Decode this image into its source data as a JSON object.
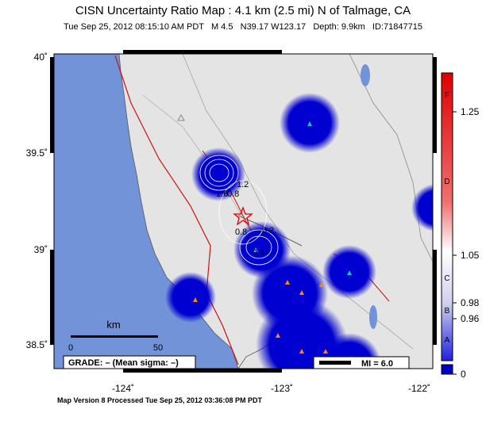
{
  "header": {
    "title": "CISN Uncertainty Ratio Map : 4.1 km (2.5 mi) N of Talmage, CA",
    "subtitle": "Tue Sep 25, 2012 08:15:10 AM PDT   M 4.5   N39.17 W123.17   Depth: 9.9km   ID:71847715"
  },
  "map": {
    "lat_labels": [
      "40˚",
      "39.5˚",
      "39˚",
      "38.5˚"
    ],
    "lon_labels": [
      "-124˚",
      "-123˚",
      "-122˚"
    ],
    "contour_labels": [
      "1.6",
      "0.8",
      "1.2",
      "0.8",
      "0.2",
      "0.4"
    ]
  },
  "scale_bar": {
    "unit": "km",
    "start": "0",
    "end": "50"
  },
  "grade": "GRADE: – (Mean sigma: –)",
  "mi_legend": "MI = 6.0",
  "colorbar": {
    "grades": [
      "F",
      "D",
      "C",
      "B",
      "A"
    ],
    "ticks": [
      "1.25",
      "1.05",
      "0.98",
      "0.96",
      "0"
    ]
  },
  "footer": "Map Version 8 Processed Tue Sep 25, 2012 03:36:08 PM PDT"
}
